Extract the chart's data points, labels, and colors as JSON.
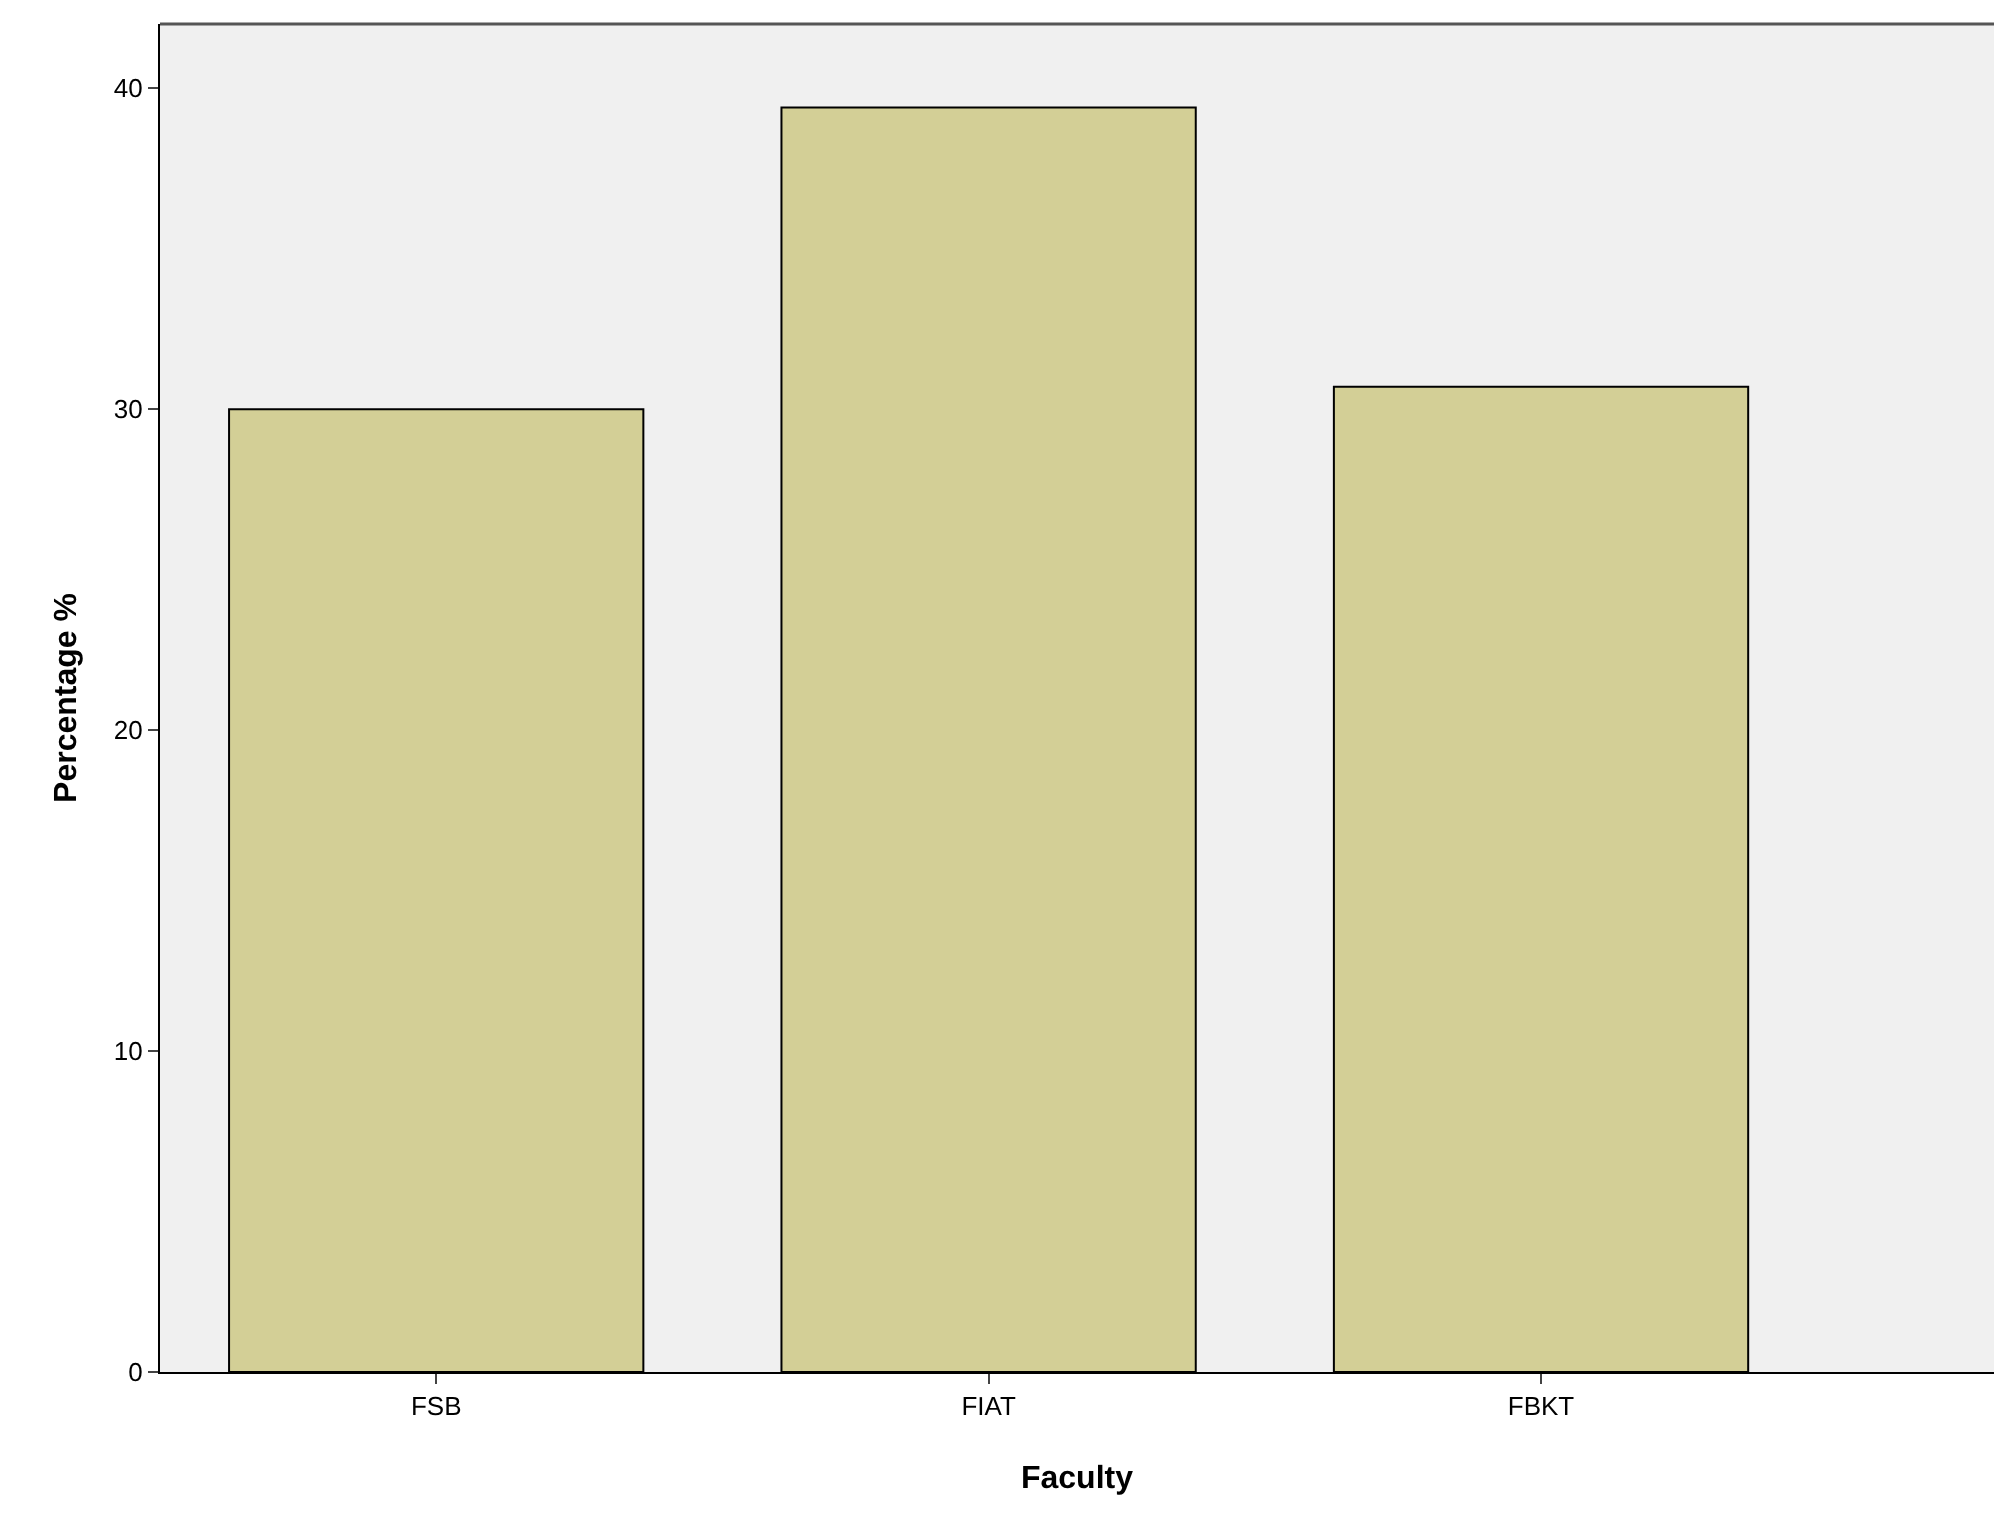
{
  "chart_data": {
    "type": "bar",
    "xlabel": "Faculty",
    "ylabel": "Percentage %",
    "categories": [
      "FSB",
      "FIAT",
      "FBKT"
    ],
    "values": [
      30.0,
      39.4,
      30.7
    ],
    "color": "#d3cf96",
    "ylim": [
      0,
      42
    ],
    "yticks": [
      0,
      10,
      20,
      30,
      40
    ],
    "grid": false
  }
}
